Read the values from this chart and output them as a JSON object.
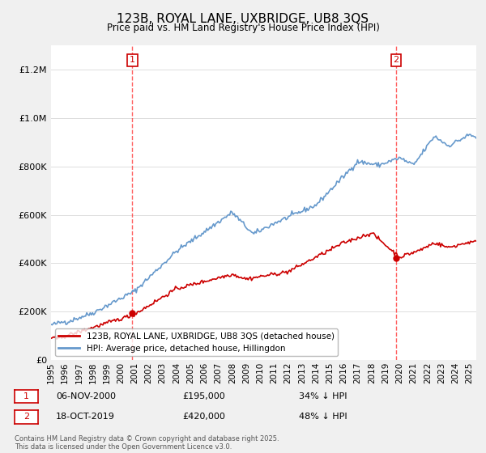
{
  "title": "123B, ROYAL LANE, UXBRIDGE, UB8 3QS",
  "subtitle": "Price paid vs. HM Land Registry's House Price Index (HPI)",
  "legend_line1": "123B, ROYAL LANE, UXBRIDGE, UB8 3QS (detached house)",
  "legend_line2": "HPI: Average price, detached house, Hillingdon",
  "annotation1_date": "06-NOV-2000",
  "annotation1_price": "£195,000",
  "annotation1_hpi": "34% ↓ HPI",
  "annotation2_date": "18-OCT-2019",
  "annotation2_price": "£420,000",
  "annotation2_hpi": "48% ↓ HPI",
  "footer": "Contains HM Land Registry data © Crown copyright and database right 2025.\nThis data is licensed under the Open Government Licence v3.0.",
  "red_color": "#cc0000",
  "blue_color": "#6699cc",
  "vline_color": "#ff4444",
  "background_color": "#f0f0f0",
  "plot_bg_color": "#ffffff",
  "ylim": [
    0,
    1300000
  ],
  "xlim_start": 1995.0,
  "xlim_end": 2025.5
}
